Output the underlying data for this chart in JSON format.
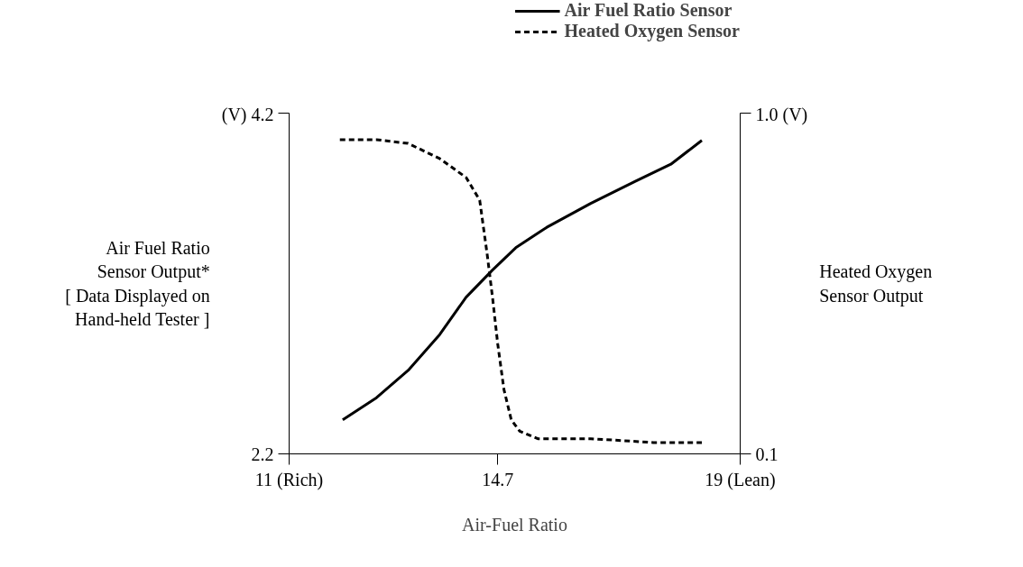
{
  "chart_data": {
    "type": "line",
    "xlabel": "Air-Fuel Ratio",
    "ylabel": "Air Fuel Ratio\nSensor Output*\n[ Data Displayed on\nHand-held Tester ]",
    "y2label": "Heated Oxygen\nSensor Output",
    "xlim": [
      11,
      19
    ],
    "xticks": [
      {
        "value": 11,
        "label": "11 (Rich)"
      },
      14.7,
      {
        "value": 19,
        "label": "19 (Lean)"
      }
    ],
    "ylim": [
      2.2,
      4.2
    ],
    "yticks": [
      2.2,
      {
        "value": 4.2,
        "label": "(V) 4.2"
      }
    ],
    "y2lim": [
      0.1,
      1.0
    ],
    "y2ticks": [
      0.1,
      {
        "value": 1.0,
        "label": "1.0 (V)"
      }
    ],
    "grid": false,
    "legend": "top right",
    "marker": "none",
    "series": [
      {
        "name": "Air Fuel Ratio Sensor",
        "color": "#000000",
        "line_style": "solid",
        "x": [
          11.95,
          12.55,
          13.11,
          13.67,
          14.14,
          14.61,
          15.02,
          15.57,
          16.35,
          17.14,
          17.77,
          18.32
        ],
        "values": [
          2.4,
          2.53,
          2.69,
          2.9,
          3.12,
          3.28,
          3.41,
          3.53,
          3.67,
          3.8,
          3.9,
          4.04
        ]
      },
      {
        "name": "Heated Oxygen Sensor",
        "color": "#000000",
        "line_style": "dashed",
        "axis": "y2",
        "x": [
          11.9,
          12.55,
          13.11,
          13.67,
          14.14,
          14.38,
          14.51,
          14.61,
          14.7,
          14.81,
          14.94,
          15.09,
          15.41,
          16.35,
          17.46,
          18.32
        ],
        "values": [
          0.93,
          0.93,
          0.92,
          0.88,
          0.83,
          0.77,
          0.63,
          0.51,
          0.39,
          0.27,
          0.19,
          0.16,
          0.14,
          0.14,
          0.13,
          0.13
        ]
      }
    ]
  }
}
